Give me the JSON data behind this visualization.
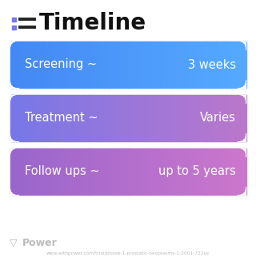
{
  "title": "Timeline",
  "background_color": "#ffffff",
  "rows": [
    {
      "label": "Screening ~",
      "value": "3 weeks",
      "color_left": "#4488f5",
      "color_right": "#55aaff"
    },
    {
      "label": "Treatment ~",
      "value": "Varies",
      "color_left": "#7777e8",
      "color_right": "#bb77cc"
    },
    {
      "label": "Follow ups ~",
      "value": "up to 5 years",
      "color_left": "#9966cc",
      "color_right": "#cc77cc"
    }
  ],
  "footer_logo": "Power",
  "footer_url": "www.withpower.com/trial/phase-1-prostatic-neoplasms-2-2001-722ec",
  "icon_color": "#7777ee",
  "footer_color": "#bbbbbb",
  "label_fontsize": 10.5,
  "value_fontsize": 10.5,
  "title_fontsize": 20
}
